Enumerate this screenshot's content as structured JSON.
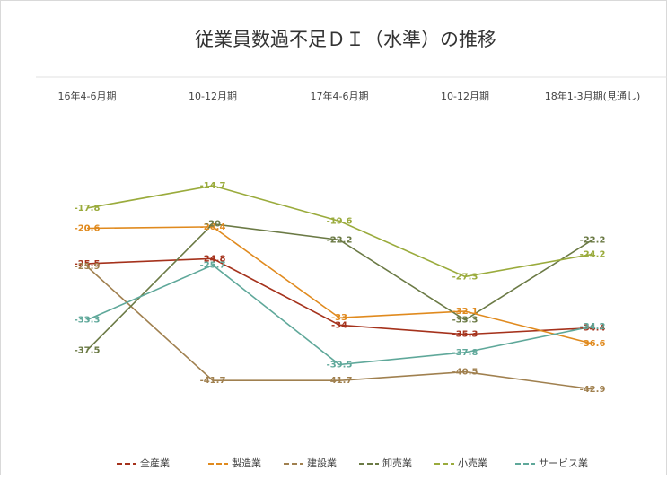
{
  "chart_data": {
    "type": "line",
    "title": "従業員数過不足ＤＩ（水準）の推移",
    "categories": [
      "16年4-6月期",
      "10-12月期",
      "17年4-6月期",
      "10-12月期",
      "18年1-3月期(見通し)"
    ],
    "ylim": [
      -50,
      -5
    ],
    "series": [
      {
        "name": "全産業",
        "color": "#a5321c",
        "values": [
          -25.5,
          -24.8,
          -34.0,
          -35.3,
          -34.4
        ]
      },
      {
        "name": "製造業",
        "color": "#e08a1e",
        "values": [
          -20.6,
          -20.4,
          -33.0,
          -32.1,
          -36.6
        ]
      },
      {
        "name": "建設業",
        "color": "#a0804f",
        "values": [
          -25.9,
          -41.7,
          -41.7,
          -40.5,
          -42.9
        ]
      },
      {
        "name": "卸売業",
        "color": "#6b7a45",
        "values": [
          -37.5,
          -20.0,
          -22.2,
          -33.3,
          -22.2
        ]
      },
      {
        "name": "小売業",
        "color": "#9aab3c",
        "values": [
          -17.8,
          -14.7,
          -19.6,
          -27.3,
          -24.2
        ]
      },
      {
        "name": "サービス業",
        "color": "#5fa89a",
        "values": [
          -33.3,
          -25.7,
          -39.5,
          -37.8,
          -34.2
        ]
      }
    ]
  }
}
